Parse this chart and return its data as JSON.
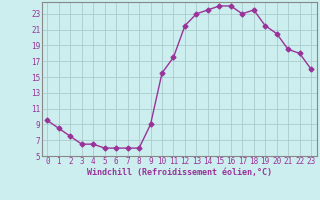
{
  "x": [
    0,
    1,
    2,
    3,
    4,
    5,
    6,
    7,
    8,
    9,
    10,
    11,
    12,
    13,
    14,
    15,
    16,
    17,
    18,
    19,
    20,
    21,
    22,
    23
  ],
  "y": [
    9.5,
    8.5,
    7.5,
    6.5,
    6.5,
    6.0,
    6.0,
    6.0,
    6.0,
    9.0,
    15.5,
    17.5,
    21.5,
    23.0,
    23.5,
    24.0,
    24.0,
    23.0,
    23.5,
    21.5,
    20.5,
    18.5,
    18.0,
    16.0
  ],
  "line_color": "#993399",
  "marker": "D",
  "marker_size": 2.5,
  "bg_color": "#cceeee",
  "grid_color": "#aacccc",
  "xlabel": "Windchill (Refroidissement éolien,°C)",
  "xlabel_color": "#993399",
  "tick_color": "#993399",
  "ylim": [
    5,
    24.5
  ],
  "xlim": [
    -0.5,
    23.5
  ],
  "yticks": [
    5,
    7,
    9,
    11,
    13,
    15,
    17,
    19,
    21,
    23
  ],
  "xticks": [
    0,
    1,
    2,
    3,
    4,
    5,
    6,
    7,
    8,
    9,
    10,
    11,
    12,
    13,
    14,
    15,
    16,
    17,
    18,
    19,
    20,
    21,
    22,
    23
  ],
  "tick_fontsize": 5.5,
  "xlabel_fontsize": 6.0,
  "spine_color": "#888888"
}
